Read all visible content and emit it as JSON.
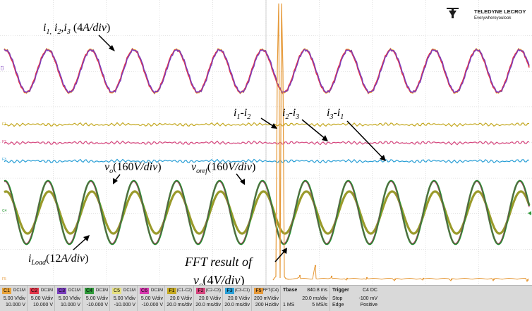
{
  "brand": {
    "name": "TELEDYNE LECROY",
    "tagline": "Everywhereyoulook"
  },
  "annotations": {
    "currents": "i1, i2, i3 (4A/div)",
    "diff12": "i1-i2",
    "diff23": "i2-i3",
    "diff31": "i3-i1",
    "vo": "vo(160V/div)",
    "voref": "voref(160V/div)",
    "iload": "iLoad(12A/div)",
    "fft": "FFT result of vo(4V/div)"
  },
  "trace_labels": {
    "c1": "C1",
    "c2": "C2",
    "c3": "C3",
    "c4": "C4",
    "c5": "C5",
    "c6": "C6",
    "f1": "F1",
    "f2": "F2",
    "f3": "F3",
    "f5": "F5"
  },
  "colors": {
    "c1": "#e8a33a",
    "c2": "#e2374a",
    "c3": "#7a3dbd",
    "c4": "#2f9a3a",
    "c5": "#e6e080",
    "c6": "#d83ab0",
    "f1": "#c4a821",
    "f2": "#d6467e",
    "f3": "#2a9fd6",
    "f5": "#e69a3a",
    "grid": "#c8c8c8",
    "bg": "#ffffff"
  },
  "channels": [
    {
      "tag": "C1",
      "color": "#e8a33a",
      "coupling": "DC1M",
      "vdiv": "5.00 V/div",
      "offset": "10.000 V"
    },
    {
      "tag": "C2",
      "color": "#e2374a",
      "coupling": "DC1M",
      "vdiv": "5.00 V/div",
      "offset": "10.000 V"
    },
    {
      "tag": "C3",
      "color": "#7a3dbd",
      "coupling": "DC1M",
      "vdiv": "5.00 V/div",
      "offset": "10.000 V"
    },
    {
      "tag": "C4",
      "color": "#2f9a3a",
      "coupling": "DC1M",
      "vdiv": "5.00 V/div",
      "offset": "-10.000 V"
    },
    {
      "tag": "C5",
      "color": "#e6e080",
      "coupling": "DC1M",
      "vdiv": "5.00 V/div",
      "offset": "-10.000 V"
    },
    {
      "tag": "C6",
      "color": "#d83ab0",
      "coupling": "DC1M",
      "vdiv": "5.00 V/div",
      "offset": "-10.000 V"
    },
    {
      "tag": "F1",
      "color": "#c4a821",
      "coupling": "(C1-C2)",
      "vdiv": "20.0 V/div",
      "offset": "20.0 ms/div"
    },
    {
      "tag": "F2",
      "color": "#d6467e",
      "coupling": "(C2-C3)",
      "vdiv": "20.0 V/div",
      "offset": "20.0 ms/div"
    },
    {
      "tag": "F3",
      "color": "#2a9fd6",
      "coupling": "(C3-C1)",
      "vdiv": "20.0 V/div",
      "offset": "20.0 ms/div"
    },
    {
      "tag": "F5",
      "color": "#e69a3a",
      "coupling": "FFT(C4)",
      "vdiv": "200 mV/div",
      "offset": "200 Hz/div"
    }
  ],
  "timebase": {
    "label": "Tbase",
    "value": "840.8 ms",
    "div": "20.0 ms/div",
    "samples": "1 MS",
    "rate": "5 MS/s"
  },
  "trigger": {
    "label": "Trigger",
    "source": "C4 DC",
    "mode": "Stop",
    "level": "-100 mV",
    "type": "Edge",
    "slope": "Positive"
  }
}
